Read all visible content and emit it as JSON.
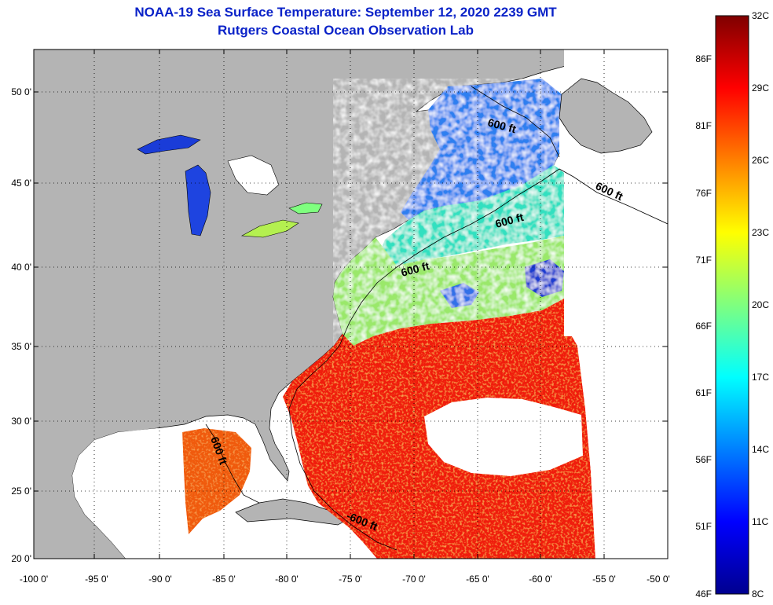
{
  "title": {
    "line1": "NOAA-19 Sea Surface Temperature:  September 12, 2020 2239 GMT",
    "line2": "Rutgers Coastal Ocean Observation Lab"
  },
  "map": {
    "lat_ticks": [
      "50 0'",
      "45 0'",
      "40 0'",
      "35 0'",
      "30 0'",
      "25 0'",
      "20 0'"
    ],
    "lon_ticks": [
      "-100 0'",
      "-95 0'",
      "-90 0'",
      "-85 0'",
      "-80 0'",
      "-75 0'",
      "-70 0'",
      "-65 0'",
      "-60 0'",
      "-55 0'",
      "-50 0'"
    ],
    "contour_labels": [
      {
        "text": "600 ft"
      },
      {
        "text": "600 ft"
      },
      {
        "text": "600 ft"
      },
      {
        "text": "600 ft"
      },
      {
        "text": "600 ft"
      },
      {
        "text": "-600 ft"
      }
    ],
    "colors": {
      "land": "#b4b4b4",
      "cloud": "#ffffff"
    }
  },
  "colorbar": {
    "celsius": [
      "32C",
      "29C",
      "26C",
      "23C",
      "20C",
      "17C",
      "14C",
      "11C",
      "8C"
    ],
    "fahrenheit": [
      "86F",
      "81F",
      "76F",
      "71F",
      "66F",
      "61F",
      "56F",
      "51F",
      "46F"
    ],
    "min_c": 8,
    "max_c": 32
  }
}
